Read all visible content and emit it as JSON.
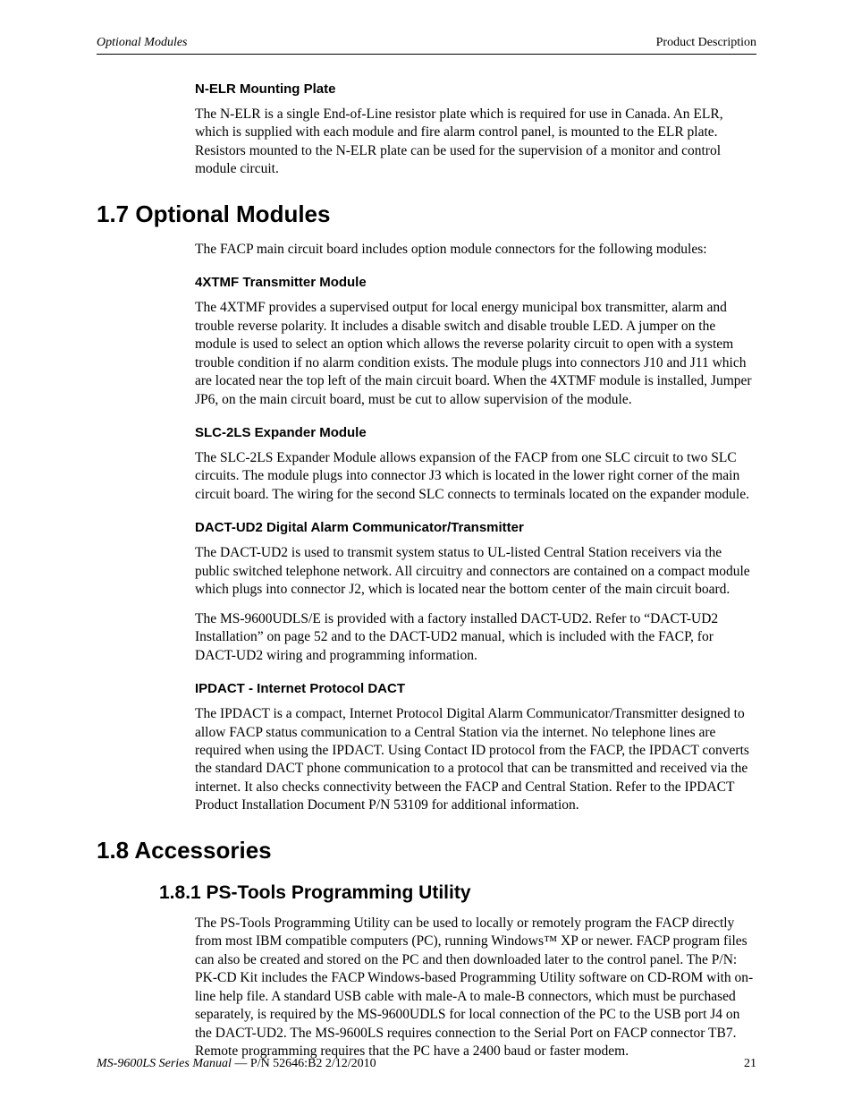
{
  "header": {
    "left": "Optional Modules",
    "right": "Product Description"
  },
  "sections": {
    "nelr": {
      "title": "N-ELR Mounting Plate",
      "body": "The N-ELR is a single End-of-Line resistor plate which is required for use in Canada.  An ELR, which is supplied with each module and fire alarm control panel, is mounted to the ELR plate.  Resistors mounted to the N-ELR plate can be used for the supervision of a monitor and control module circuit."
    },
    "h17": "1.7  Optional Modules",
    "intro17": "The FACP main circuit board includes option module connectors for the following modules:",
    "xtmf": {
      "title": "4XTMF Transmitter Module",
      "body": "The 4XTMF provides a supervised output for local energy municipal box transmitter, alarm and trouble reverse polarity.  It includes a disable switch and disable trouble LED.  A jumper on the module is used to select an option which allows the reverse polarity circuit to open with a system trouble condition if no alarm condition exists.  The module plugs into connectors J10 and J11 which are located near the top left of the main circuit board.  When the 4XTMF module is installed, Jumper JP6, on the main circuit board, must be cut to allow supervision of the module."
    },
    "slc": {
      "title": "SLC-2LS Expander Module",
      "body": "The SLC-2LS Expander Module allows expansion of the FACP from one SLC circuit to two SLC circuits.  The module plugs into connector J3 which is located in the lower right corner of the main circuit board.  The wiring for the second SLC connects to terminals located on the expander module."
    },
    "dact": {
      "title": "DACT-UD2 Digital Alarm Communicator/Transmitter",
      "body1": "The DACT-UD2 is used to transmit system status to UL-listed Central Station receivers via the public switched telephone network.  All circuitry and connectors are contained on a compact module which plugs into connector J2, which is located near the bottom center of the main circuit board.",
      "body2": "The MS-9600UDLS/E is provided with a factory installed DACT-UD2.  Refer to “DACT-UD2 Installation” on page 52 and to the DACT-UD2 manual, which is included with the FACP, for DACT-UD2 wiring and programming information."
    },
    "ipdact": {
      "title": "IPDACT - Internet Protocol DACT",
      "body": "The IPDACT is a compact, Internet Protocol Digital Alarm Communicator/Transmitter designed to allow FACP status communication to a Central Station via the internet.  No telephone lines are required when using the IPDACT.  Using Contact ID protocol from the FACP, the IPDACT converts the standard DACT phone communication to a protocol that can be transmitted and received via the internet.  It also checks connectivity between the FACP and Central Station.  Refer to the IPDACT Product Installation Document P/N 53109 for additional information."
    },
    "h18": "1.8  Accessories",
    "h181": "1.8.1  PS-Tools Programming Utility",
    "pstools": {
      "body": "The PS-Tools Programming Utility can be used to locally or remotely program the FACP directly from most IBM compatible computers (PC), running Windows™ XP or newer.  FACP program files can also be created and stored on the PC and then downloaded later to the control panel.  The P/N: PK-CD Kit includes the FACP Windows-based Programming Utility software on CD-ROM with on-line help file.  A standard USB cable with male-A to male-B connectors, which must be purchased separately, is required by the MS-9600UDLS for local connection of the PC to the USB port J4 on the DACT-UD2.  The MS-9600LS requires connection to the Serial Port on FACP connector TB7.  Remote programming requires that the PC have a 2400 baud or faster modem."
    }
  },
  "footer": {
    "manual": "MS-9600LS Series Manual",
    "pn": " — P/N 52646:B2  2/12/2010",
    "page": "21"
  }
}
